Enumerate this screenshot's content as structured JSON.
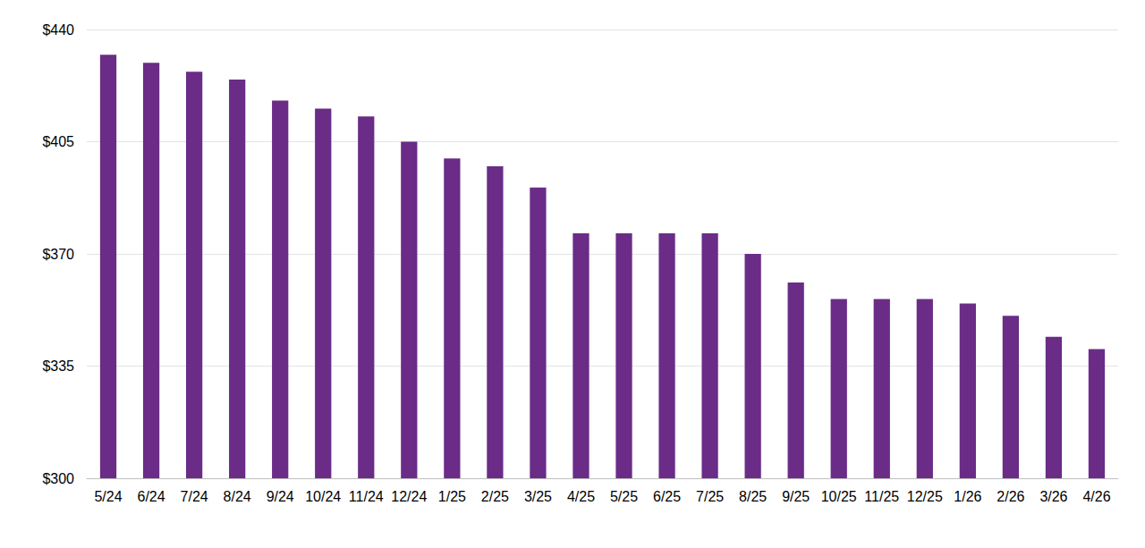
{
  "chart_data": {
    "type": "bar",
    "categories": [
      "5/24",
      "6/24",
      "7/24",
      "8/24",
      "9/24",
      "10/24",
      "11/24",
      "12/24",
      "1/25",
      "2/25",
      "3/25",
      "4/25",
      "5/25",
      "6/25",
      "7/25",
      "8/25",
      "9/25",
      "10/25",
      "11/25",
      "12/25",
      "1/26",
      "2/26",
      "3/26",
      "4/26"
    ],
    "values": [
      432.1,
      429.6,
      426.8,
      424.4,
      417.8,
      415.3,
      412.9,
      405.0,
      399.8,
      397.3,
      390.7,
      376.4,
      376.4,
      376.4,
      376.4,
      370.0,
      361.1,
      355.9,
      355.9,
      355.9,
      354.5,
      350.7,
      344.1,
      340.3
    ],
    "color": "#6a2c87",
    "ylim": [
      300,
      440
    ],
    "yticks": [
      {
        "value": 300,
        "label": "$300"
      },
      {
        "value": 335,
        "label": "$335"
      },
      {
        "value": 370,
        "label": "$370"
      },
      {
        "value": 405,
        "label": "$405"
      },
      {
        "value": 440,
        "label": "$440"
      }
    ],
    "grid": true
  }
}
